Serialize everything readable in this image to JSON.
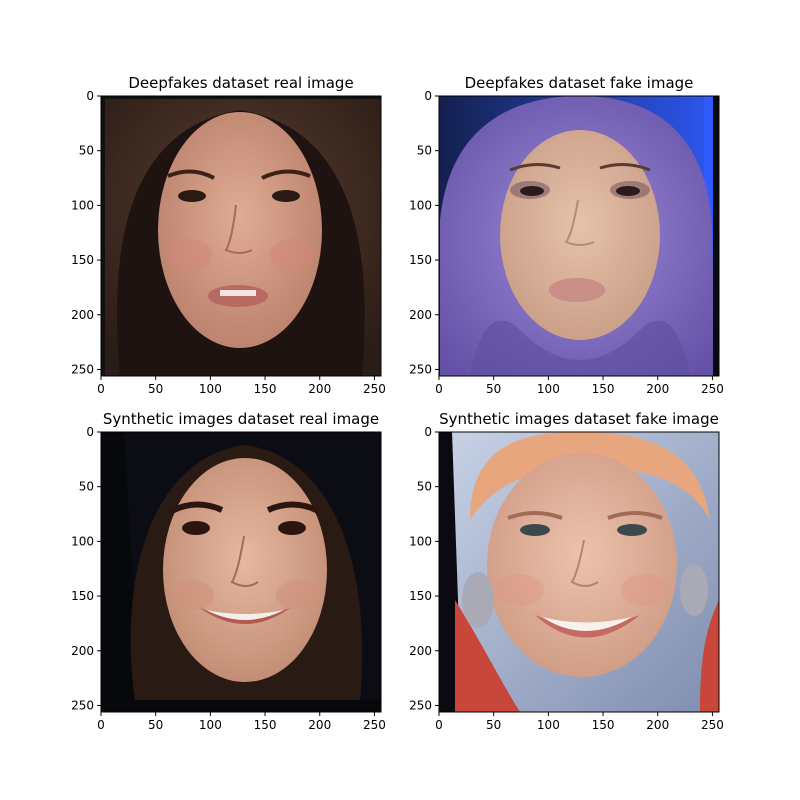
{
  "panels": [
    {
      "title": "Deepfakes dataset real image",
      "x_ticks": [
        0,
        50,
        100,
        150,
        200,
        250
      ],
      "y_ticks": [
        0,
        50,
        100,
        150,
        200,
        250
      ],
      "extent": [
        0,
        256
      ],
      "palette": {
        "bg": "#3a2a22",
        "hair": "#1e1310",
        "skin": "#d29a85",
        "cheek": "#d4867a",
        "eye": "#2a1a14",
        "lip": "#b86a62"
      }
    },
    {
      "title": "Deepfakes dataset fake image",
      "x_ticks": [
        0,
        50,
        100,
        150,
        200,
        250
      ],
      "y_ticks": [
        0,
        50,
        100,
        150,
        200,
        250
      ],
      "extent": [
        0,
        256
      ],
      "palette": {
        "bg": "#1d2a8a",
        "accent": "#2f5bff",
        "scarf": "#8a78c8",
        "scarf_dark": "#5e4f9e",
        "skin": "#ddb59c",
        "eye": "#2a1a1a",
        "lip": "#c98e86"
      }
    },
    {
      "title": "Synthetic images dataset real image",
      "x_ticks": [
        0,
        50,
        100,
        150,
        200,
        250
      ],
      "y_ticks": [
        0,
        50,
        100,
        150,
        200,
        250
      ],
      "extent": [
        0,
        256
      ],
      "palette": {
        "bg": "#07080c",
        "hair": "#2a1a14",
        "skin": "#d9a88e",
        "cheek": "#cf8f7c",
        "eye": "#2a160e",
        "lip": "#b35a50",
        "teeth": "#f4eeea"
      }
    },
    {
      "title": "Synthetic images dataset fake image",
      "x_ticks": [
        0,
        50,
        100,
        150,
        200,
        250
      ],
      "y_ticks": [
        0,
        50,
        100,
        150,
        200,
        250
      ],
      "extent": [
        0,
        256
      ],
      "palette": {
        "bg": "#9fb0cf",
        "hair": "#e8a67e",
        "skin": "#e2b29d",
        "cheek": "#de9a88",
        "eye": "#3a4a4a",
        "lip": "#c46a62",
        "teeth": "#f8f2ec",
        "cloth": "#c8463a",
        "jewel": "#a9aab5"
      }
    }
  ]
}
